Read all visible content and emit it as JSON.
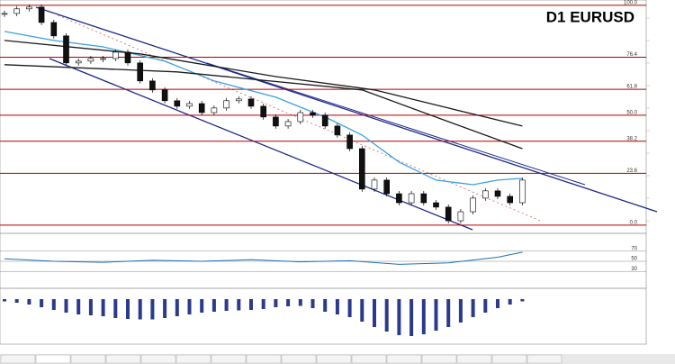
{
  "chart_data": [
    {
      "type": "candlestick",
      "title": "D1 EURUSD",
      "values": [
        96.3,
        98.4,
        99.2,
        92.2,
        86.1,
        73.8,
        74.6,
        75.8,
        75.8,
        78.7,
        73.8,
        65.6,
        61.5,
        56.6,
        54.1,
        55.3,
        51.2,
        53.3,
        56.6,
        57.4,
        54.1,
        49.2,
        45.1,
        47.1,
        51.2,
        50.0,
        45.1,
        41.0,
        34.8,
        16.4,
        20.5,
        14.3,
        10.2,
        14.3,
        10.2,
        8.2,
        2.0,
        6.1,
        12.3,
        15.6,
        13.1,
        10.2,
        20.5
      ],
      "series": [
        {
          "color": "#3aa0e0",
          "x": [
            0,
            4,
            8,
            13,
            17,
            22,
            26,
            29,
            32,
            35,
            38,
            40,
            42
          ],
          "values": [
            88.1,
            84.0,
            81.1,
            74.6,
            65.6,
            58.2,
            49.2,
            41.0,
            28.7,
            20.5,
            18.4,
            20.5,
            21.3
          ]
        },
        {
          "color": "#1a1a1a",
          "x": [
            0,
            11,
            22,
            30,
            36,
            42
          ],
          "values": [
            84.0,
            77.9,
            67.6,
            61.5,
            53.3,
            45.1
          ]
        },
        {
          "color": "#1a1a1a",
          "x": [
            0,
            14,
            29,
            36,
            42
          ],
          "values": [
            73.0,
            69.7,
            61.5,
            47.1,
            34.8
          ]
        }
      ],
      "ylim": [
        -2.5,
        101.6
      ],
      "yticks": [
        {
          "value": 0,
          "label": "0.0"
        },
        23.6,
        38.2,
        {
          "value": 50,
          "label": "50.0"
        },
        61.8,
        76.4,
        {
          "value": 100,
          "label": "100.0"
        }
      ]
    },
    {
      "type": "line",
      "color": "#1f6fb5",
      "x": [
        0,
        4,
        8,
        12,
        16,
        20,
        24,
        28,
        32,
        36,
        40,
        42
      ],
      "values": [
        55,
        50,
        48,
        52,
        50,
        53,
        49,
        51,
        44,
        47,
        58,
        68
      ],
      "ylim": [
        0,
        100
      ],
      "yticks": [
        30,
        50,
        70
      ]
    },
    {
      "type": "histogram",
      "color": "#2b3a8c",
      "values": [
        -5,
        -8,
        -12,
        -18,
        -24,
        -30,
        -34,
        -36,
        -38,
        -42,
        -44,
        -45,
        -45,
        -42,
        -38,
        -34,
        -30,
        -28,
        -26,
        -25,
        -24,
        -22,
        -18,
        -16,
        -15,
        -20,
        -28,
        -34,
        -40,
        -50,
        -62,
        -72,
        -80,
        -82,
        -78,
        -70,
        -62,
        -52,
        -40,
        -30,
        -20,
        -12,
        -5
      ],
      "ylim": [
        -100,
        20
      ]
    }
  ]
}
